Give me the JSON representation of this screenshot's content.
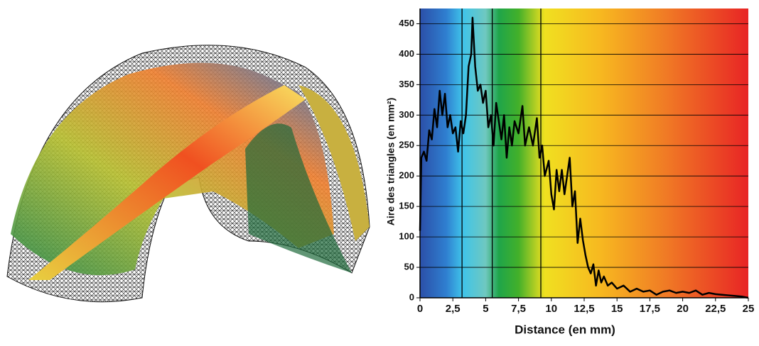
{
  "chart_data": {
    "type": "line",
    "xlabel": "Distance (en mm)",
    "ylabel": "Aire des triangles (en mm²)",
    "xlim": [
      0,
      25
    ],
    "ylim": [
      0,
      475
    ],
    "xticks": [
      0,
      {
        "value": 2.5,
        "label": "2,5"
      },
      5,
      {
        "value": 7.5,
        "label": "7,5"
      },
      10,
      {
        "value": 12.5,
        "label": "12,5"
      },
      15,
      {
        "value": 17.5,
        "label": "17,5"
      },
      20,
      {
        "value": 22.5,
        "label": "22,5"
      },
      25
    ],
    "yticks": [
      0,
      50,
      100,
      150,
      200,
      250,
      300,
      350,
      400,
      450
    ],
    "grid": true,
    "vlines": [
      3.2,
      5.5,
      9.2
    ],
    "color": "#000000",
    "x": [
      0,
      0.1,
      0.3,
      0.5,
      0.7,
      0.9,
      1.1,
      1.3,
      1.5,
      1.7,
      1.9,
      2.1,
      2.3,
      2.5,
      2.7,
      2.9,
      3.1,
      3.3,
      3.5,
      3.7,
      3.9,
      4.0,
      4.2,
      4.4,
      4.6,
      4.8,
      5.0,
      5.2,
      5.4,
      5.6,
      5.8,
      6.0,
      6.2,
      6.4,
      6.6,
      6.8,
      7.0,
      7.2,
      7.5,
      7.8,
      8.0,
      8.3,
      8.6,
      8.9,
      9.1,
      9.3,
      9.5,
      9.8,
      10.0,
      10.2,
      10.4,
      10.6,
      10.8,
      11.0,
      11.2,
      11.4,
      11.6,
      11.8,
      12.0,
      12.2,
      12.4,
      12.6,
      12.8,
      13.0,
      13.2,
      13.4,
      13.6,
      13.8,
      14.0,
      14.3,
      14.6,
      15.0,
      15.5,
      16.0,
      16.5,
      17.0,
      17.5,
      18.0,
      18.5,
      19.0,
      19.5,
      20.0,
      20.5,
      21.0,
      21.5,
      22.0,
      22.5,
      23.0,
      23.5,
      24.0,
      24.5,
      25.0
    ],
    "values": [
      110,
      230,
      240,
      225,
      275,
      260,
      310,
      280,
      340,
      300,
      335,
      280,
      300,
      270,
      280,
      240,
      290,
      270,
      300,
      380,
      400,
      460,
      380,
      340,
      350,
      320,
      340,
      280,
      300,
      250,
      320,
      290,
      260,
      300,
      230,
      280,
      250,
      290,
      270,
      315,
      250,
      280,
      250,
      295,
      230,
      250,
      200,
      225,
      170,
      145,
      210,
      175,
      210,
      170,
      200,
      230,
      150,
      175,
      90,
      130,
      95,
      70,
      50,
      40,
      55,
      20,
      45,
      25,
      35,
      20,
      25,
      15,
      20,
      10,
      15,
      10,
      12,
      5,
      10,
      12,
      8,
      10,
      8,
      12,
      5,
      8,
      6,
      5,
      4,
      3,
      2,
      0
    ]
  }
}
